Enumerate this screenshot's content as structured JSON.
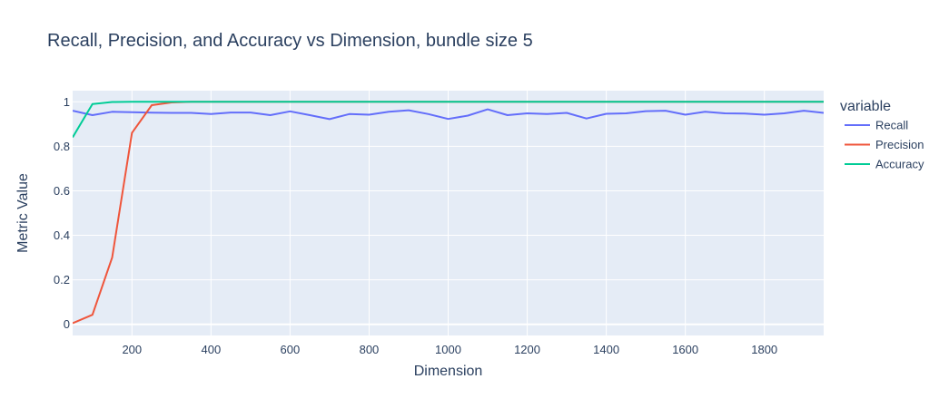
{
  "chart_data": {
    "type": "line",
    "title": "Recall, Precision, and Accuracy vs Dimension, bundle size 5",
    "xlabel": "Dimension",
    "ylabel": "Metric Value",
    "xlim": [
      50,
      1950
    ],
    "ylim": [
      -0.05,
      1.05
    ],
    "x_ticks": [
      200,
      400,
      600,
      800,
      1000,
      1200,
      1400,
      1600,
      1800
    ],
    "y_ticks": [
      0,
      0.2,
      0.4,
      0.6,
      0.8,
      1
    ],
    "y_tick_labels": [
      "0",
      "0.2",
      "0.4",
      "0.6",
      "0.8",
      "1"
    ],
    "grid": true,
    "legend_title": "variable",
    "legend_position": "right",
    "x": [
      50,
      100,
      150,
      200,
      250,
      300,
      350,
      400,
      450,
      500,
      550,
      600,
      650,
      700,
      750,
      800,
      850,
      900,
      950,
      1000,
      1050,
      1100,
      1150,
      1200,
      1250,
      1300,
      1350,
      1400,
      1450,
      1500,
      1550,
      1600,
      1650,
      1700,
      1750,
      1800,
      1850,
      1900,
      1950
    ],
    "series": [
      {
        "name": "Recall",
        "color": "#636efa",
        "values": [
          0.96,
          0.94,
          0.955,
          0.953,
          0.951,
          0.95,
          0.95,
          0.945,
          0.952,
          0.952,
          0.94,
          0.957,
          0.94,
          0.922,
          0.945,
          0.942,
          0.955,
          0.962,
          0.945,
          0.923,
          0.938,
          0.966,
          0.94,
          0.948,
          0.945,
          0.95,
          0.925,
          0.946,
          0.948,
          0.958,
          0.96,
          0.942,
          0.955,
          0.948,
          0.947,
          0.942,
          0.948,
          0.96,
          0.95
        ]
      },
      {
        "name": "Precision",
        "color": "#ef553b",
        "values": [
          0.005,
          0.043,
          0.3,
          0.86,
          0.985,
          0.997,
          1,
          1,
          1,
          1,
          1,
          1,
          1,
          1,
          1,
          1,
          1,
          1,
          1,
          1,
          1,
          1,
          1,
          1,
          1,
          1,
          1,
          1,
          1,
          1,
          1,
          1,
          1,
          1,
          1,
          1,
          1,
          1,
          1
        ]
      },
      {
        "name": "Accuracy",
        "color": "#00cc96",
        "values": [
          0.84,
          0.99,
          0.999,
          1,
          1,
          1,
          1,
          1,
          1,
          1,
          1,
          1,
          1,
          1,
          1,
          1,
          1,
          1,
          1,
          1,
          1,
          1,
          1,
          1,
          1,
          1,
          1,
          1,
          1,
          1,
          1,
          1,
          1,
          1,
          1,
          1,
          1,
          1,
          1
        ]
      }
    ]
  },
  "colors": {
    "plot_background": "#e5ecf6",
    "grid": "#ffffff",
    "text": "#2a3f5f"
  }
}
